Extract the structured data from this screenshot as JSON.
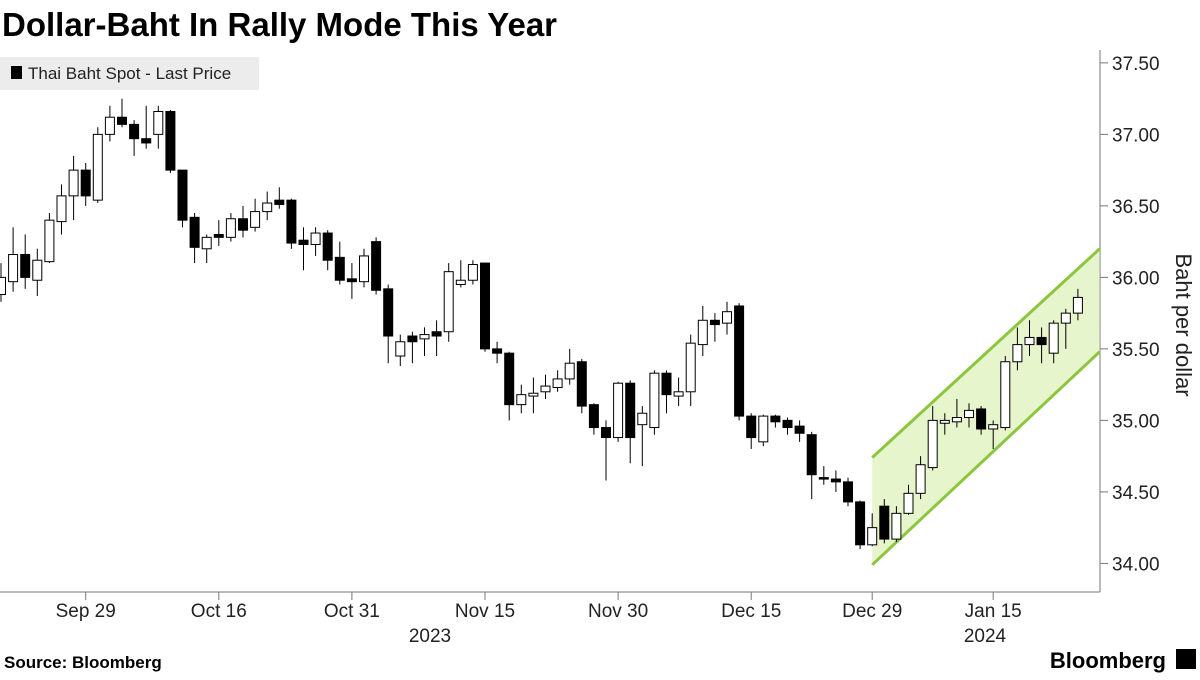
{
  "chart_data": {
    "type": "candlestick",
    "title": "Dollar-Baht In Rally Mode This Year",
    "y_axis_label": "Baht per dollar",
    "source": "Source: Bloomberg",
    "brand": "Bloomberg",
    "years": [
      "2023",
      "2024"
    ],
    "categories": [
      null,
      null,
      null,
      null,
      null,
      null,
      null,
      "Sep 29",
      null,
      null,
      null,
      null,
      null,
      null,
      null,
      null,
      null,
      null,
      "Oct 16",
      null,
      null,
      null,
      null,
      null,
      null,
      null,
      null,
      null,
      null,
      "Oct 31",
      null,
      null,
      null,
      null,
      null,
      null,
      null,
      null,
      null,
      null,
      "Nov 15",
      null,
      null,
      null,
      null,
      null,
      null,
      null,
      null,
      null,
      null,
      "Nov 30",
      null,
      null,
      null,
      null,
      null,
      null,
      null,
      null,
      null,
      null,
      "Dec 15",
      null,
      null,
      null,
      null,
      null,
      null,
      null,
      null,
      null,
      "Dec 29",
      null,
      null,
      null,
      null,
      null,
      null,
      null,
      null,
      null,
      "Jan 15",
      null,
      null,
      null,
      null,
      null,
      null,
      null
    ],
    "series": [
      {
        "name": "Thai Baht Spot - Last Price",
        "color": "#000000",
        "up_color": "#ffffff",
        "open": [
          35.88,
          35.97,
          36.16,
          35.98,
          36.11,
          36.39,
          36.57,
          36.75,
          36.54,
          37.0,
          37.12,
          37.07,
          36.97,
          37.0,
          37.16,
          36.75,
          36.42,
          36.2,
          36.3,
          36.28,
          36.41,
          36.35,
          36.46,
          36.54,
          36.54,
          36.26,
          36.23,
          36.31,
          36.14,
          35.99,
          35.97,
          36.25,
          35.92,
          35.45,
          35.59,
          35.57,
          35.62,
          35.62,
          35.95,
          35.98,
          36.1,
          35.5,
          35.47,
          35.11,
          35.17,
          35.2,
          35.23,
          35.29,
          35.41,
          35.11,
          34.95,
          34.88,
          35.26,
          34.97,
          34.95,
          35.33,
          35.17,
          35.2,
          35.53,
          35.7,
          35.68,
          35.8,
          35.03,
          34.85,
          35.03,
          35.0,
          34.96,
          34.9,
          34.6,
          34.59,
          34.57,
          34.43,
          34.13,
          34.4,
          34.17,
          34.35,
          34.49,
          34.67,
          34.98,
          34.99,
          35.02,
          35.08,
          34.94,
          34.95,
          35.41,
          35.53,
          35.58,
          35.47,
          35.68,
          35.75
        ],
        "high": [
          36.1,
          36.35,
          36.3,
          36.2,
          36.45,
          36.65,
          36.85,
          36.8,
          37.05,
          37.2,
          37.25,
          37.1,
          37.2,
          37.2,
          37.17,
          36.75,
          36.45,
          36.3,
          36.4,
          36.45,
          36.5,
          36.55,
          36.6,
          36.63,
          36.55,
          36.35,
          36.35,
          36.33,
          36.25,
          36.1,
          36.2,
          36.28,
          35.95,
          35.6,
          35.62,
          35.65,
          35.7,
          36.1,
          36.12,
          36.12,
          36.1,
          35.55,
          35.48,
          35.25,
          35.3,
          35.32,
          35.35,
          35.5,
          35.43,
          35.12,
          35.0,
          35.27,
          35.28,
          35.1,
          35.35,
          35.35,
          35.3,
          35.6,
          35.8,
          35.75,
          35.83,
          35.82,
          35.05,
          35.04,
          35.04,
          35.02,
          35.0,
          34.92,
          34.68,
          34.65,
          34.6,
          34.44,
          34.35,
          34.45,
          34.4,
          34.55,
          34.75,
          35.1,
          35.05,
          35.15,
          35.12,
          35.1,
          35.0,
          35.45,
          35.65,
          35.7,
          35.65,
          35.7,
          35.78,
          35.92
        ],
        "low": [
          35.83,
          35.9,
          35.92,
          35.87,
          36.1,
          36.3,
          36.4,
          36.5,
          36.52,
          36.95,
          37.05,
          36.85,
          36.9,
          36.9,
          36.73,
          36.35,
          36.1,
          36.1,
          36.22,
          36.25,
          36.28,
          36.32,
          36.4,
          36.48,
          36.2,
          36.05,
          36.15,
          36.05,
          35.95,
          35.85,
          35.93,
          35.88,
          35.4,
          35.38,
          35.4,
          35.45,
          35.45,
          35.55,
          35.93,
          35.95,
          35.48,
          35.4,
          35.0,
          35.05,
          35.05,
          35.15,
          35.2,
          35.25,
          35.05,
          34.9,
          34.58,
          34.85,
          34.7,
          34.68,
          34.9,
          35.05,
          35.1,
          35.1,
          35.45,
          35.55,
          35.6,
          35.0,
          34.8,
          34.82,
          34.95,
          34.9,
          34.85,
          34.45,
          34.55,
          34.5,
          34.4,
          34.1,
          34.12,
          34.14,
          34.15,
          34.34,
          34.45,
          34.65,
          34.9,
          34.95,
          34.95,
          34.9,
          34.8,
          34.93,
          35.35,
          35.45,
          35.4,
          35.4,
          35.5,
          35.7
        ],
        "close": [
          36.0,
          36.16,
          36.0,
          36.12,
          36.4,
          36.57,
          36.75,
          36.57,
          37.0,
          37.12,
          37.07,
          36.97,
          36.94,
          37.16,
          36.75,
          36.4,
          36.21,
          36.28,
          36.28,
          36.41,
          36.33,
          36.46,
          36.52,
          36.51,
          36.24,
          36.23,
          36.31,
          36.12,
          35.98,
          35.97,
          36.15,
          35.91,
          35.59,
          35.55,
          35.55,
          35.6,
          35.59,
          36.04,
          35.98,
          36.09,
          35.5,
          35.47,
          35.11,
          35.18,
          35.19,
          35.24,
          35.29,
          35.4,
          35.1,
          34.95,
          34.88,
          35.26,
          34.88,
          35.05,
          35.33,
          35.18,
          35.2,
          35.54,
          35.7,
          35.67,
          35.76,
          35.03,
          34.88,
          35.03,
          34.99,
          34.95,
          34.91,
          34.62,
          34.59,
          34.57,
          34.43,
          34.13,
          34.25,
          34.17,
          34.35,
          34.49,
          34.69,
          35.0,
          35.0,
          35.02,
          35.07,
          34.94,
          34.97,
          35.41,
          35.53,
          35.58,
          35.53,
          35.68,
          35.75,
          35.86
        ]
      }
    ],
    "channel": {
      "color": "#8cc63f",
      "fill": "#e6f5cc",
      "x": [
        72,
        90.8
      ],
      "upper": [
        34.74,
        36.2
      ],
      "lower": [
        33.99,
        35.48
      ]
    },
    "ylim": [
      33.8,
      37.59
    ],
    "yticks": [
      {
        "value": 34,
        "label": "34.00"
      },
      {
        "value": 34.5,
        "label": "34.50"
      },
      {
        "value": 35,
        "label": "35.00"
      },
      {
        "value": 35.5,
        "label": "35.50"
      },
      {
        "value": 36,
        "label": "36.00"
      },
      {
        "value": 36.5,
        "label": "36.50"
      },
      {
        "value": 37,
        "label": "37.00"
      },
      {
        "value": 37.5,
        "label": "37.50"
      }
    ],
    "grid": false
  }
}
